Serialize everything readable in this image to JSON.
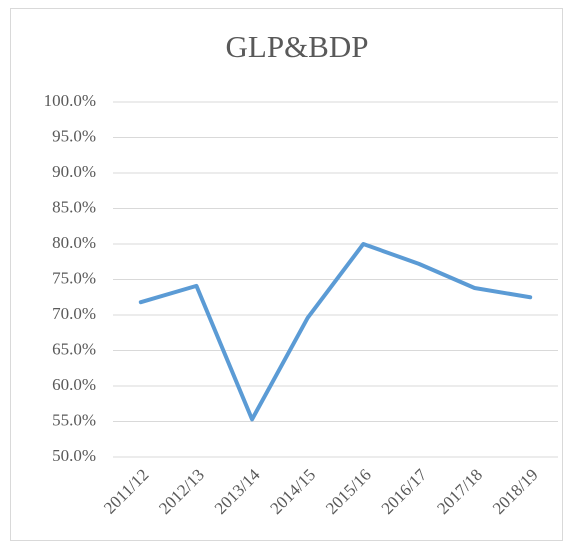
{
  "chart_data": {
    "type": "line",
    "title": "GLP&BDP",
    "categories": [
      "2011/12",
      "2012/13",
      "2013/14",
      "2014/15",
      "2015/16",
      "2016/17",
      "2017/18",
      "2018/19"
    ],
    "series": [
      {
        "name": "GLP&BDP",
        "color": "#5b9bd5",
        "values": [
          71.8,
          74.1,
          55.3,
          69.6,
          80.0,
          77.2,
          73.8,
          72.5
        ]
      }
    ],
    "ylim": [
      50,
      100
    ],
    "yticks": [
      {
        "value": 50,
        "label": "50.0%"
      },
      {
        "value": 55,
        "label": "55.0%"
      },
      {
        "value": 60,
        "label": "60.0%"
      },
      {
        "value": 65,
        "label": "65.0%"
      },
      {
        "value": 70,
        "label": "70.0%"
      },
      {
        "value": 75,
        "label": "75.0%"
      },
      {
        "value": 80,
        "label": "80.0%"
      },
      {
        "value": 85,
        "label": "85.0%"
      },
      {
        "value": 90,
        "label": "90.0%"
      },
      {
        "value": 95,
        "label": "95.0%"
      },
      {
        "value": 100,
        "label": "100.0%"
      }
    ],
    "grid": true
  }
}
